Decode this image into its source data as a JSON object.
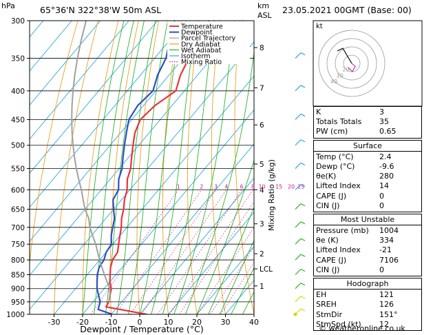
{
  "header": {
    "hpa_label": "hPa",
    "location": "65°36'N  322°38'W  50m  ASL",
    "km_label": "km",
    "asl_label": "ASL",
    "datetime": "23.05.2021  00GMT  (Base: 00)"
  },
  "legend": [
    {
      "label": "Temperature",
      "color": "#e8323c"
    },
    {
      "label": "Dewpoint",
      "color": "#2a4ec8"
    },
    {
      "label": "Parcel Trajectory",
      "color": "#a0a0a0"
    },
    {
      "label": "Dry Adiabat",
      "color": "#e8a020"
    },
    {
      "label": "Wet Adiabat",
      "color": "#28b428"
    },
    {
      "label": "Isotherm",
      "color": "#28a8e0"
    },
    {
      "label": "Mixing Ratio",
      "color": "#c8148c"
    }
  ],
  "chart_data": {
    "type": "line",
    "xlabel": "Dewpoint / Temperature (°C)",
    "ylabel_right": "Mixing Ratio (g/kg)",
    "x_ticks": [
      -30,
      -20,
      -10,
      0,
      10,
      20,
      30,
      40
    ],
    "pressure_levels": [
      300,
      350,
      400,
      450,
      500,
      550,
      600,
      650,
      700,
      750,
      800,
      850,
      900,
      950,
      1000
    ],
    "km_ticks": [
      {
        "label": "8",
        "p": 335
      },
      {
        "label": "7",
        "p": 395
      },
      {
        "label": "6",
        "p": 460
      },
      {
        "label": "5",
        "p": 540
      },
      {
        "label": "4",
        "p": 600
      },
      {
        "label": "3",
        "p": 690
      },
      {
        "label": "2",
        "p": 780
      },
      {
        "label": "LCL",
        "p": 830
      },
      {
        "label": "1",
        "p": 890
      }
    ],
    "mixing_ratio_labels": [
      "1",
      "2",
      "3",
      "4",
      "6",
      "8",
      "10",
      "15",
      "20",
      "25"
    ],
    "series": [
      {
        "name": "Temperature",
        "points": [
          [
            2.4,
            1000
          ],
          [
            -14,
            970
          ],
          [
            -14.5,
            950
          ],
          [
            -16,
            925
          ],
          [
            -17.5,
            900
          ],
          [
            -20,
            875
          ],
          [
            -22,
            850
          ],
          [
            -24,
            825
          ],
          [
            -25.5,
            800
          ],
          [
            -26,
            775
          ],
          [
            -28,
            750
          ],
          [
            -30,
            725
          ],
          [
            -32,
            700
          ],
          [
            -34.5,
            675
          ],
          [
            -36.5,
            650
          ],
          [
            -39,
            625
          ],
          [
            -41,
            600
          ],
          [
            -44,
            575
          ],
          [
            -46,
            550
          ],
          [
            -49,
            525
          ],
          [
            -52,
            500
          ],
          [
            -55,
            475
          ],
          [
            -57,
            450
          ],
          [
            -56,
            425
          ],
          [
            -53,
            400
          ],
          [
            -56,
            375
          ],
          [
            -58,
            350
          ],
          [
            -60,
            325
          ],
          [
            -62,
            300
          ]
        ]
      },
      {
        "name": "Dewpoint",
        "points": [
          [
            -9.6,
            1000
          ],
          [
            -16,
            980
          ],
          [
            -17.5,
            950
          ],
          [
            -20,
            925
          ],
          [
            -22.5,
            900
          ],
          [
            -24.5,
            875
          ],
          [
            -26.5,
            850
          ],
          [
            -28,
            825
          ],
          [
            -28.5,
            800
          ],
          [
            -30,
            775
          ],
          [
            -30.5,
            750
          ],
          [
            -33,
            725
          ],
          [
            -35,
            700
          ],
          [
            -37,
            675
          ],
          [
            -40,
            650
          ],
          [
            -43,
            625
          ],
          [
            -44,
            600
          ],
          [
            -47,
            575
          ],
          [
            -49,
            550
          ],
          [
            -52,
            525
          ],
          [
            -55,
            500
          ],
          [
            -58,
            475
          ],
          [
            -61,
            450
          ],
          [
            -62,
            425
          ],
          [
            -61,
            400
          ],
          [
            -64,
            375
          ],
          [
            -66,
            350
          ],
          [
            -70,
            325
          ],
          [
            -74,
            300
          ]
        ]
      },
      {
        "name": "Parcel Trajectory",
        "points": [
          [
            -14.5,
            950
          ],
          [
            -16,
            925
          ],
          [
            -18,
            900
          ],
          [
            -21,
            875
          ],
          [
            -24,
            850
          ],
          [
            -27,
            825
          ],
          [
            -30,
            800
          ],
          [
            -33,
            775
          ],
          [
            -36,
            750
          ],
          [
            -39.5,
            725
          ],
          [
            -43,
            700
          ],
          [
            -46,
            675
          ],
          [
            -50,
            650
          ],
          [
            -53.5,
            625
          ],
          [
            -57,
            600
          ],
          [
            -61,
            575
          ],
          [
            -65,
            550
          ],
          [
            -69,
            525
          ],
          [
            -73,
            500
          ],
          [
            -77,
            475
          ],
          [
            -81,
            450
          ],
          [
            -85,
            425
          ],
          [
            -89,
            400
          ],
          [
            -93,
            375
          ],
          [
            -97,
            350
          ],
          [
            -101,
            325
          ],
          [
            -105,
            300
          ]
        ]
      }
    ]
  },
  "hodograph": {
    "label": "kt",
    "ring_labels": [
      "40",
      "30",
      "20"
    ]
  },
  "indices": {
    "top": [
      {
        "label": "K",
        "value": "3"
      },
      {
        "label": "Totals Totals",
        "value": "35"
      },
      {
        "label": "PW (cm)",
        "value": "0.65"
      }
    ],
    "surface": {
      "title": "Surface",
      "rows": [
        {
          "label": "Temp (°C)",
          "value": "2.4"
        },
        {
          "label": "Dewp (°C)",
          "value": "-9.6"
        },
        {
          "label": "θe(K)",
          "value": "280"
        },
        {
          "label": "Lifted Index",
          "value": "14"
        },
        {
          "label": "CAPE (J)",
          "value": "0"
        },
        {
          "label": "CIN (J)",
          "value": "0"
        }
      ]
    },
    "most_unstable": {
      "title": "Most Unstable",
      "rows": [
        {
          "label": "Pressure (mb)",
          "value": "1004"
        },
        {
          "label": "θe (K)",
          "value": "334"
        },
        {
          "label": "Lifted Index",
          "value": "-21"
        },
        {
          "label": "CAPE (J)",
          "value": "7106"
        },
        {
          "label": "CIN (J)",
          "value": "0"
        }
      ]
    },
    "hodograph_box": {
      "title": "Hodograph",
      "rows": [
        {
          "label": "EH",
          "value": "121"
        },
        {
          "label": "SREH",
          "value": "126"
        },
        {
          "label": "StmDir",
          "value": "151°"
        },
        {
          "label": "StmSpd (kt)",
          "value": "12"
        }
      ]
    }
  },
  "footer": "© weatheronline.co.uk"
}
